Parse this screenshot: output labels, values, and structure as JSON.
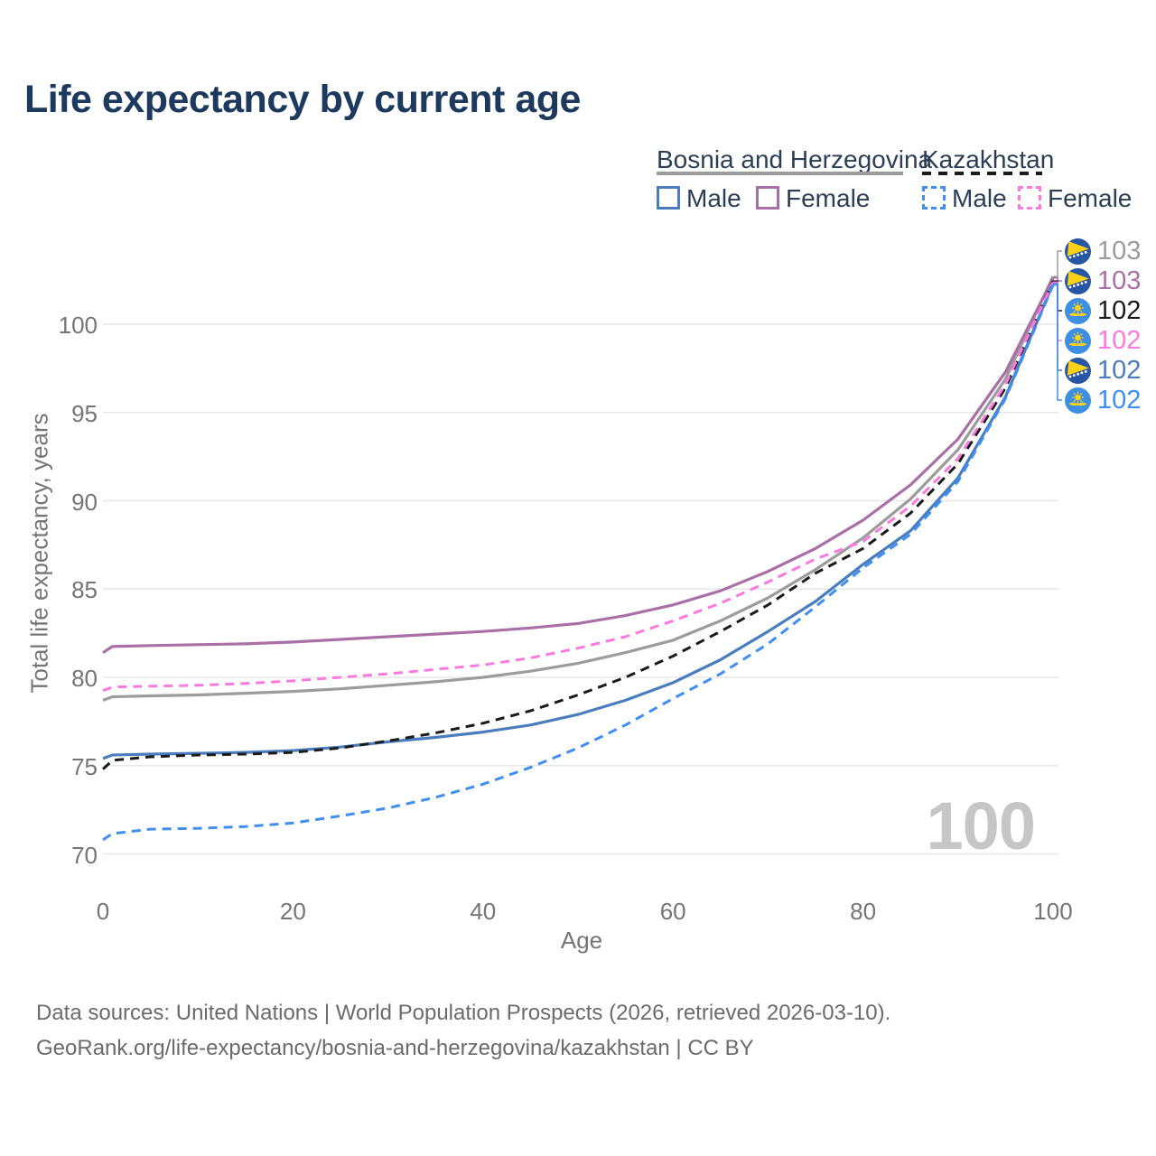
{
  "title": "Life expectancy by current age",
  "legend": {
    "groups": [
      {
        "name": "Bosnia and Herzegovina",
        "line_color": "#9c9c9c",
        "line_style": "solid",
        "items": [
          {
            "label": "Male",
            "color": "#4a7dbd",
            "style": "solid"
          },
          {
            "label": "Female",
            "color": "#a96fa6",
            "style": "solid"
          }
        ]
      },
      {
        "name": "Kazakhstan",
        "line_color": "#1b1b1b",
        "line_style": "dashed",
        "items": [
          {
            "label": "Male",
            "color": "#3f8ef2",
            "style": "dashed"
          },
          {
            "label": "Female",
            "color": "#fb7ae0",
            "style": "dashed"
          }
        ]
      }
    ]
  },
  "axes": {
    "x_title": "Age",
    "y_title": "Total life expectancy, years",
    "x_ticks": [
      0,
      20,
      40,
      60,
      80,
      100
    ],
    "y_ticks": [
      70,
      75,
      80,
      85,
      90,
      95,
      100
    ]
  },
  "watermark": "100",
  "footer": {
    "line1": "Data sources: United Nations | World Population Prospects (2026, retrieved 2026-03-10).",
    "line2": "GeoRank.org/life-expectancy/bosnia-and-herzegovina/kazakhstan | CC BY"
  },
  "chart_data": {
    "type": "line",
    "title": "Life expectancy by current age",
    "xlabel": "Age",
    "ylabel": "Total life expectancy, years",
    "xlim": [
      0,
      100
    ],
    "ylim": [
      68,
      104
    ],
    "grid": "horizontal",
    "legend_position": "top-right",
    "x": [
      0,
      1,
      5,
      10,
      15,
      20,
      25,
      30,
      35,
      40,
      45,
      50,
      55,
      60,
      65,
      70,
      75,
      80,
      85,
      90,
      95,
      100
    ],
    "series": [
      {
        "name": "Bosnia and Herzegovina — Total",
        "country": "Bosnia and Herzegovina",
        "sex": "Total",
        "flag": "bosnia",
        "color": "#9c9c9c",
        "dashed": false,
        "end_label": "103",
        "label_order": 0,
        "values": [
          78.7,
          78.9,
          78.95,
          79.0,
          79.1,
          79.2,
          79.35,
          79.55,
          79.75,
          80.0,
          80.35,
          80.8,
          81.4,
          82.1,
          83.2,
          84.5,
          86.1,
          87.9,
          90.1,
          92.9,
          96.9,
          102.7
        ]
      },
      {
        "name": "Bosnia and Herzegovina — Female",
        "country": "Bosnia and Herzegovina",
        "sex": "Female",
        "flag": "bosnia",
        "color": "#a96fa6",
        "dashed": false,
        "end_label": "103",
        "label_order": 1,
        "values": [
          81.4,
          81.75,
          81.8,
          81.85,
          81.9,
          82.0,
          82.15,
          82.3,
          82.45,
          82.6,
          82.8,
          83.05,
          83.5,
          84.1,
          84.9,
          86.0,
          87.3,
          88.9,
          90.9,
          93.5,
          97.3,
          102.62
        ]
      },
      {
        "name": "Bosnia and Herzegovina — Male",
        "country": "Bosnia and Herzegovina",
        "sex": "Male",
        "flag": "bosnia",
        "color": "#4a7dbd",
        "dashed": false,
        "end_label": "102",
        "label_order": 4,
        "values": [
          75.4,
          75.6,
          75.65,
          75.7,
          75.75,
          75.85,
          76.05,
          76.35,
          76.6,
          76.9,
          77.3,
          77.9,
          78.7,
          79.7,
          81.0,
          82.6,
          84.3,
          86.4,
          88.3,
          91.3,
          95.9,
          102.3
        ]
      },
      {
        "name": "Kazakhstan — Total",
        "country": "Kazakhstan",
        "sex": "Total",
        "flag": "kazakhstan",
        "color": "#1b1b1b",
        "dashed": true,
        "end_label": "102",
        "label_order": 2,
        "values": [
          74.8,
          75.3,
          75.5,
          75.6,
          75.65,
          75.75,
          76.0,
          76.4,
          76.85,
          77.4,
          78.1,
          79.0,
          80.0,
          81.2,
          82.6,
          84.1,
          85.9,
          87.3,
          89.3,
          92.1,
          96.4,
          102.45
        ]
      },
      {
        "name": "Kazakhstan — Female",
        "country": "Kazakhstan",
        "sex": "Female",
        "flag": "kazakhstan",
        "color": "#fb7ae0",
        "dashed": true,
        "end_label": "102",
        "label_order": 3,
        "values": [
          79.25,
          79.45,
          79.5,
          79.55,
          79.65,
          79.8,
          80.0,
          80.2,
          80.45,
          80.7,
          81.1,
          81.65,
          82.3,
          83.2,
          84.2,
          85.4,
          86.7,
          87.7,
          89.7,
          92.4,
          96.6,
          102.38
        ]
      },
      {
        "name": "Kazakhstan — Male",
        "country": "Kazakhstan",
        "sex": "Male",
        "flag": "kazakhstan",
        "color": "#3f8ef2",
        "dashed": true,
        "end_label": "102",
        "label_order": 5,
        "values": [
          70.8,
          71.15,
          71.4,
          71.45,
          71.55,
          71.75,
          72.15,
          72.6,
          73.2,
          73.95,
          74.9,
          76.0,
          77.3,
          78.8,
          80.2,
          81.9,
          84.0,
          86.2,
          88.1,
          91.1,
          95.8,
          102.22
        ]
      }
    ]
  }
}
